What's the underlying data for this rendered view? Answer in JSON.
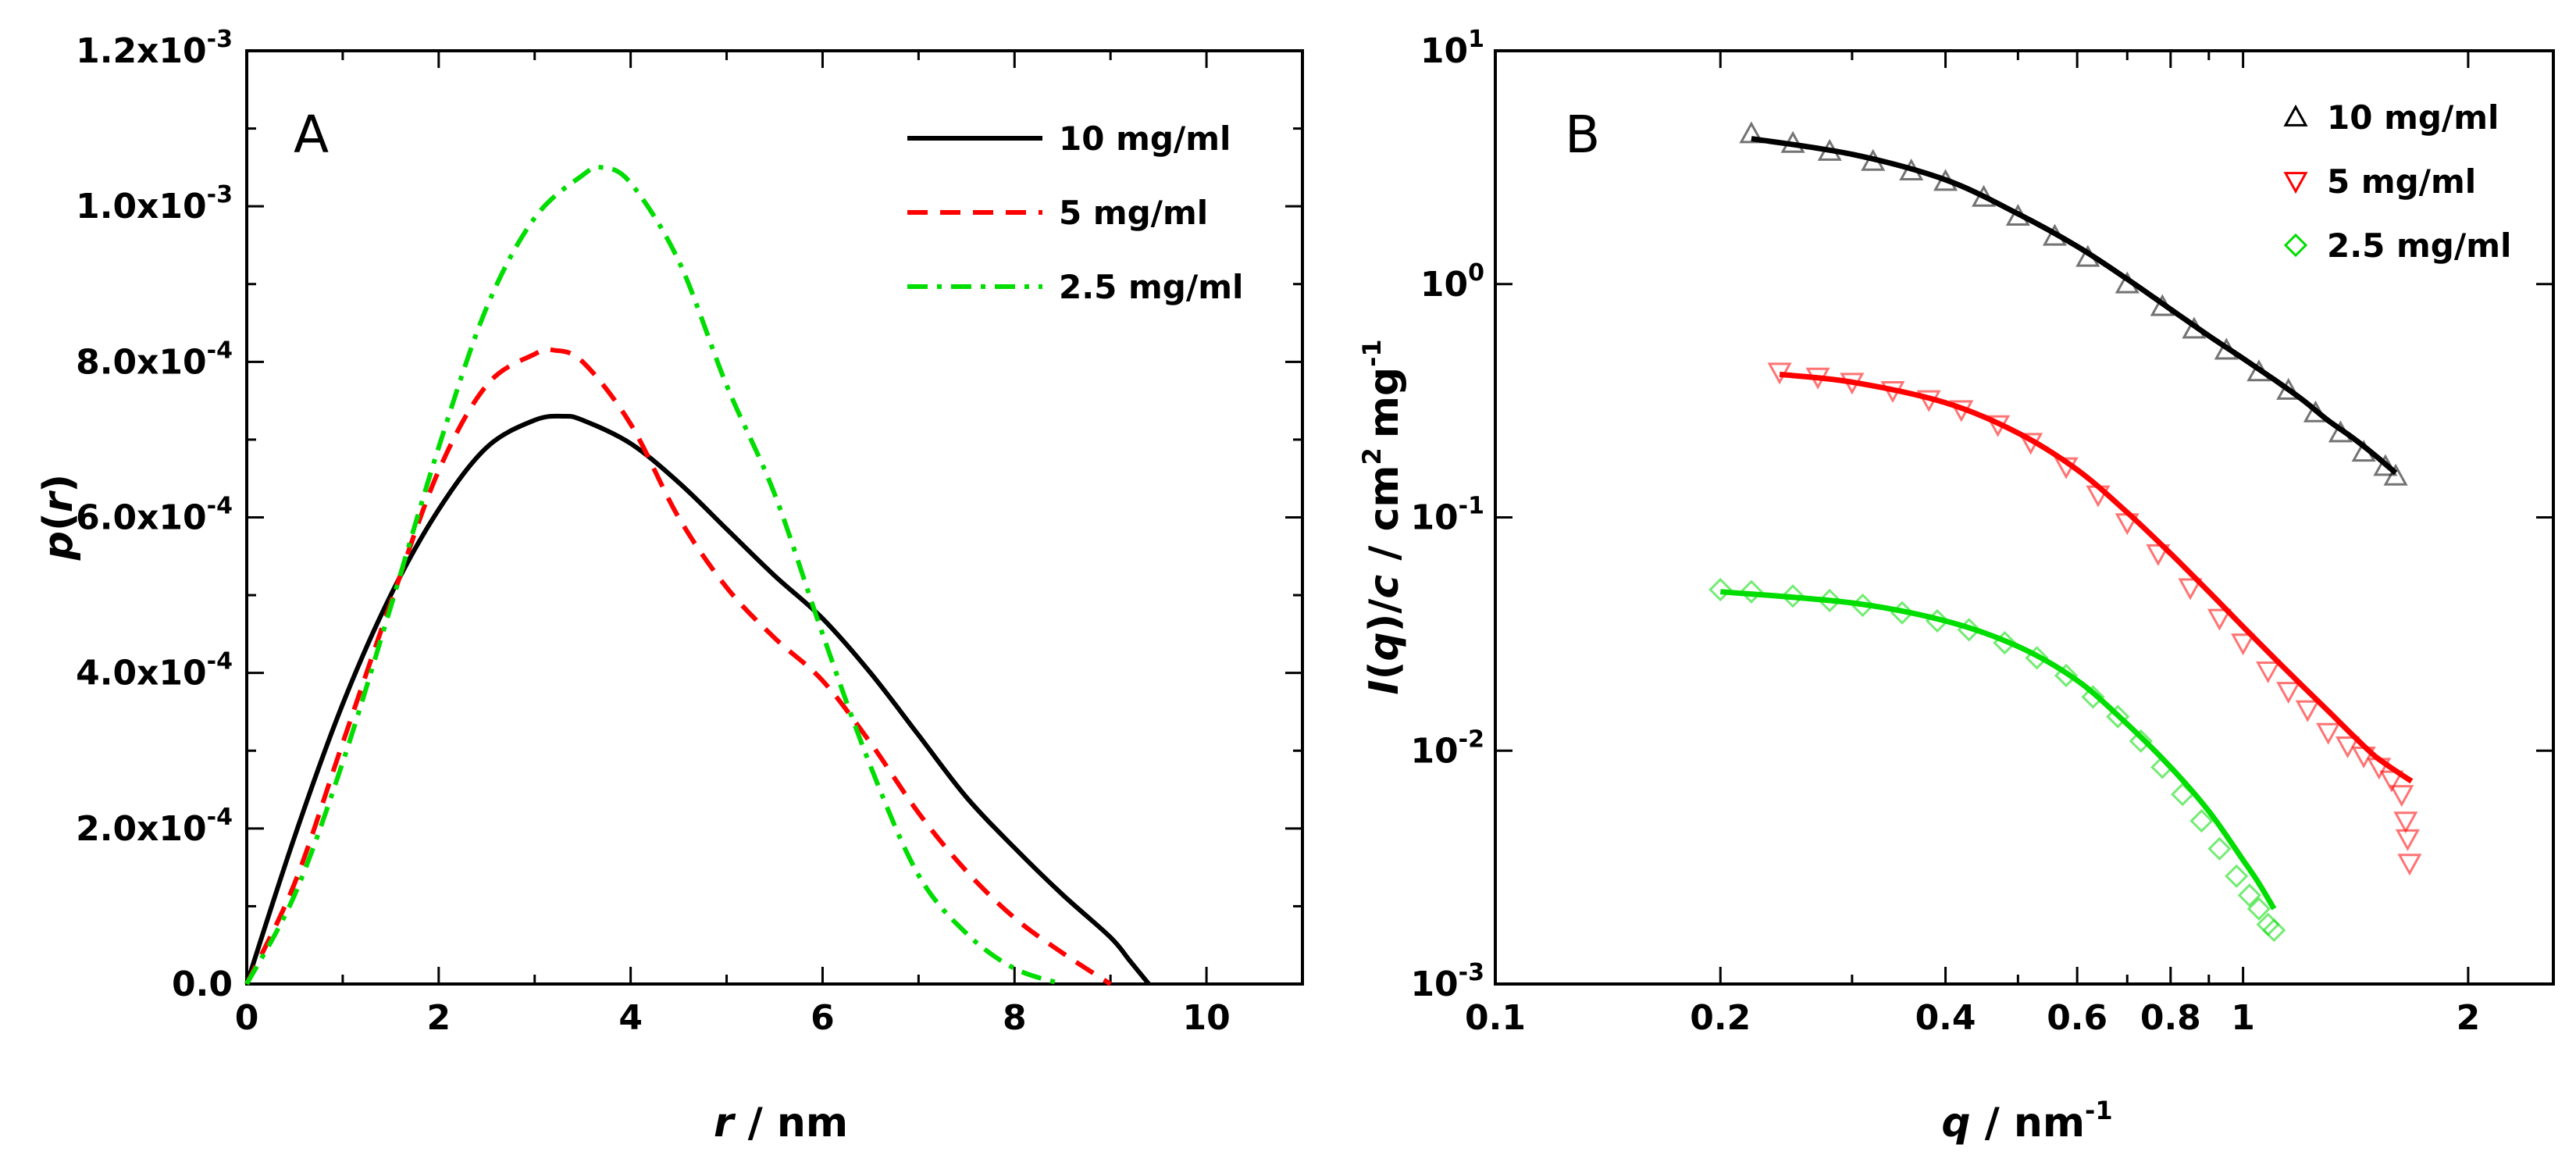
{
  "chart_data": [
    {
      "type": "line",
      "panel_label": "A",
      "xlabel_var": "r",
      "xlabel_sep": " / ",
      "xlabel_unit": "nm",
      "ylabel_name": "p",
      "ylabel_var": "r",
      "xlim": [
        0,
        11
      ],
      "ylim": [
        0,
        0.0012
      ],
      "xticks": [
        0,
        2,
        4,
        6,
        8,
        10
      ],
      "xtick_labels": [
        "0",
        "2",
        "4",
        "6",
        "8",
        "10"
      ],
      "yticks": [
        0,
        0.0002,
        0.0004,
        0.0006,
        0.0008,
        0.001,
        0.0012
      ],
      "ytick_mantissa": [
        "0.0",
        "2.0x10",
        "4.0x10",
        "6.0x10",
        "8.0x10",
        "1.0x10",
        "1.2x10"
      ],
      "ytick_exponent": [
        "",
        "-4",
        "-4",
        "-4",
        "-4",
        "-3",
        "-3"
      ],
      "legend_position": "top-right",
      "series": [
        {
          "name": "10 mg/ml",
          "color": "#000000",
          "style": "solid",
          "x": [
            0,
            0.5,
            1,
            1.5,
            2,
            2.5,
            3,
            3.3,
            3.5,
            4,
            4.5,
            5,
            5.5,
            6,
            6.5,
            7,
            7.5,
            8,
            8.5,
            9,
            9.2,
            9.4
          ],
          "y": [
            0,
            0.00019,
            0.00036,
            0.0005,
            0.00061,
            0.00069,
            0.000725,
            0.00073,
            0.000725,
            0.000695,
            0.000645,
            0.000585,
            0.000525,
            0.00047,
            0.0004,
            0.00032,
            0.00024,
            0.000175,
            0.000115,
            6e-05,
            3e-05,
            0
          ]
        },
        {
          "name": "5 mg/ml",
          "color": "#ff0000",
          "style": "dashed",
          "x": [
            0,
            0.5,
            1,
            1.5,
            2,
            2.5,
            3,
            3.2,
            3.5,
            4,
            4.5,
            5,
            5.5,
            6,
            6.5,
            7,
            7.5,
            8,
            8.5,
            9
          ],
          "y": [
            0,
            0.00013,
            0.00031,
            0.00049,
            0.00066,
            0.00077,
            0.00081,
            0.000815,
            0.0008,
            0.00072,
            0.0006,
            0.00051,
            0.000445,
            0.00039,
            0.00031,
            0.00022,
            0.000145,
            8.5e-05,
            4e-05,
            0
          ]
        },
        {
          "name": "2.5 mg/ml",
          "color": "#00dd00",
          "style": "dashdot",
          "x": [
            0,
            0.5,
            1,
            1.5,
            2,
            2.5,
            3,
            3.5,
            3.7,
            4,
            4.5,
            5,
            5.5,
            6,
            6.5,
            7,
            7.5,
            8,
            8.5
          ],
          "y": [
            0,
            0.000115,
            0.000285,
            0.000485,
            0.00069,
            0.00087,
            0.000985,
            0.00104,
            0.00105,
            0.00103,
            0.00093,
            0.00077,
            0.00063,
            0.00045,
            0.00028,
            0.00014,
            6.5e-05,
            2e-05,
            0
          ]
        }
      ]
    },
    {
      "type": "scatter",
      "panel_label": "B",
      "xscale": "log",
      "yscale": "log",
      "xlabel_var": "q",
      "xlabel_sep": " / ",
      "xlabel_unit": "nm",
      "xlabel_unit_exp": "-1",
      "ylabel_func": "I",
      "ylabel_var": "q",
      "ylabel_c": "c",
      "ylabel_sep": " / ",
      "ylabel_unit1": "cm",
      "ylabel_unit1_exp": "2",
      "ylabel_unit2": "mg",
      "ylabel_unit2_exp": "-1",
      "xlim": [
        0.1,
        2.6
      ],
      "ylim": [
        0.001,
        10
      ],
      "xticks": [
        0.1,
        0.2,
        0.4,
        0.6,
        0.8,
        1,
        2
      ],
      "xtick_labels": [
        "0.1",
        "0.2",
        "0.4",
        "0.6",
        "0.8",
        "1",
        "2"
      ],
      "yticks": [
        0.001,
        0.01,
        0.1,
        1,
        10
      ],
      "ytick_mantissa": [
        "10",
        "10",
        "10",
        "10",
        "10"
      ],
      "ytick_exponent": [
        "-3",
        "-2",
        "-1",
        "0",
        "1"
      ],
      "legend_position": "top-right",
      "series": [
        {
          "name": "10 mg/ml",
          "marker": "triangle-up",
          "color": "#000000",
          "x": [
            0.22,
            0.25,
            0.28,
            0.32,
            0.36,
            0.4,
            0.45,
            0.5,
            0.56,
            0.62,
            0.7,
            0.78,
            0.86,
            0.95,
            1.05,
            1.15,
            1.25,
            1.35,
            1.45,
            1.55,
            1.6
          ],
          "y": [
            4.4,
            4.0,
            3.7,
            3.35,
            3.05,
            2.75,
            2.35,
            1.95,
            1.6,
            1.3,
            1.0,
            0.8,
            0.64,
            0.52,
            0.42,
            0.35,
            0.28,
            0.23,
            0.19,
            0.165,
            0.15
          ],
          "fit_x": [
            0.22,
            0.3,
            0.4,
            0.5,
            0.6,
            0.7,
            0.8,
            0.9,
            1.0,
            1.1,
            1.2,
            1.3,
            1.4,
            1.5,
            1.6
          ],
          "fit_y": [
            4.2,
            3.6,
            2.8,
            2.0,
            1.45,
            1.05,
            0.78,
            0.6,
            0.48,
            0.39,
            0.32,
            0.26,
            0.22,
            0.185,
            0.155
          ]
        },
        {
          "name": "5 mg/ml",
          "marker": "triangle-down",
          "color": "#ff0000",
          "x": [
            0.24,
            0.27,
            0.3,
            0.34,
            0.38,
            0.42,
            0.47,
            0.52,
            0.58,
            0.64,
            0.7,
            0.77,
            0.85,
            0.93,
            1.0,
            1.08,
            1.15,
            1.22,
            1.3,
            1.38,
            1.45,
            1.52,
            1.58,
            1.63,
            1.65,
            1.66,
            1.67
          ],
          "y": [
            0.42,
            0.4,
            0.38,
            0.35,
            0.32,
            0.29,
            0.25,
            0.21,
            0.165,
            0.125,
            0.095,
            0.07,
            0.05,
            0.037,
            0.029,
            0.022,
            0.018,
            0.015,
            0.012,
            0.0105,
            0.0095,
            0.0085,
            0.0075,
            0.0065,
            0.005,
            0.0042,
            0.0033
          ],
          "fit_x": [
            0.24,
            0.3,
            0.4,
            0.5,
            0.6,
            0.7,
            0.8,
            0.9,
            1.0,
            1.1,
            1.2,
            1.3,
            1.4,
            1.5,
            1.6,
            1.68
          ],
          "fit_y": [
            0.41,
            0.38,
            0.31,
            0.23,
            0.16,
            0.105,
            0.07,
            0.048,
            0.034,
            0.025,
            0.019,
            0.0148,
            0.0117,
            0.0095,
            0.0082,
            0.0074
          ]
        },
        {
          "name": "2.5 mg/ml",
          "marker": "diamond",
          "color": "#00dd00",
          "x": [
            0.2,
            0.22,
            0.25,
            0.28,
            0.31,
            0.35,
            0.39,
            0.43,
            0.48,
            0.53,
            0.58,
            0.63,
            0.68,
            0.73,
            0.78,
            0.83,
            0.88,
            0.93,
            0.98,
            1.02,
            1.05,
            1.08,
            1.1
          ],
          "y": [
            0.049,
            0.048,
            0.046,
            0.044,
            0.042,
            0.039,
            0.036,
            0.033,
            0.029,
            0.025,
            0.021,
            0.017,
            0.014,
            0.011,
            0.0085,
            0.0065,
            0.005,
            0.0038,
            0.0029,
            0.0024,
            0.0021,
            0.0018,
            0.0017
          ],
          "fit_x": [
            0.2,
            0.3,
            0.4,
            0.5,
            0.6,
            0.7,
            0.8,
            0.9,
            1.0,
            1.05,
            1.1
          ],
          "fit_y": [
            0.048,
            0.043,
            0.036,
            0.028,
            0.02,
            0.013,
            0.0085,
            0.0055,
            0.0034,
            0.0027,
            0.0021
          ]
        }
      ]
    }
  ]
}
